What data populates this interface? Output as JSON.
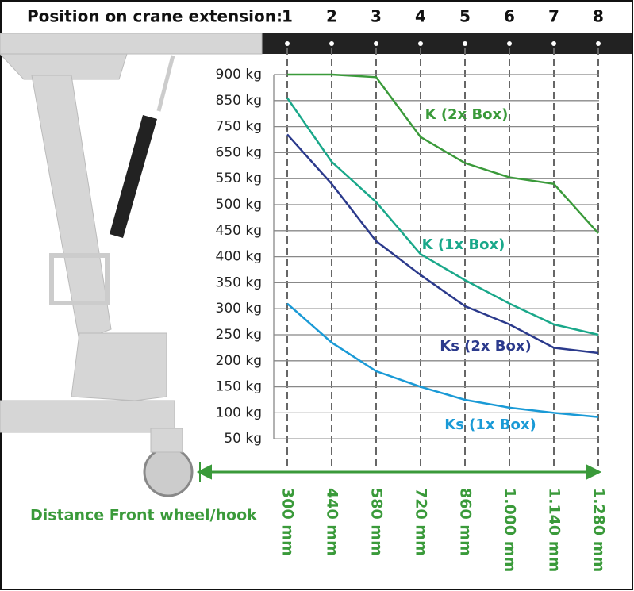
{
  "header": "Position on crane extension:",
  "chart_data": {
    "type": "line",
    "categories": [
      "1",
      "2",
      "3",
      "4",
      "5",
      "6",
      "7",
      "8"
    ],
    "distance_title": "Distance Front wheel/hook",
    "distance_labels": [
      "300 mm",
      "440 mm",
      "580 mm",
      "720 mm",
      "860 mm",
      "1.000 mm",
      "1.140 mm",
      "1.280 mm"
    ],
    "ylim": [
      50,
      900
    ],
    "yticks": [
      {
        "value": 900,
        "label": "900 kg"
      },
      {
        "value": 850,
        "label": "850 kg"
      },
      {
        "value": 750,
        "label": "750 kg"
      },
      {
        "value": 650,
        "label": "650 kg"
      },
      {
        "value": 550,
        "label": "550 kg"
      },
      {
        "value": 500,
        "label": "500 kg"
      },
      {
        "value": 450,
        "label": "450 kg"
      },
      {
        "value": 400,
        "label": "400 kg"
      },
      {
        "value": 350,
        "label": "350 kg"
      },
      {
        "value": 300,
        "label": "300 kg"
      },
      {
        "value": 250,
        "label": "250 kg"
      },
      {
        "value": 200,
        "label": "200 kg"
      },
      {
        "value": 150,
        "label": "150 kg"
      },
      {
        "value": 100,
        "label": "100 kg"
      },
      {
        "value": 50,
        "label": "50 kg"
      }
    ],
    "series": [
      {
        "name": "K (2x Box)",
        "color": "#3a9a3a",
        "values": [
          900,
          900,
          895,
          710,
          610,
          555,
          540,
          445
        ]
      },
      {
        "name": "K (1x Box)",
        "color": "#1aa88a",
        "values": [
          855,
          615,
          505,
          405,
          355,
          310,
          270,
          250
        ]
      },
      {
        "name": "Ks (2x Box)",
        "color": "#2b3a8c",
        "values": [
          720,
          540,
          430,
          365,
          305,
          270,
          225,
          215
        ]
      },
      {
        "name": "Ks (1x Box)",
        "color": "#1a9ad6",
        "values": [
          310,
          235,
          180,
          150,
          125,
          110,
          100,
          92
        ]
      }
    ]
  }
}
